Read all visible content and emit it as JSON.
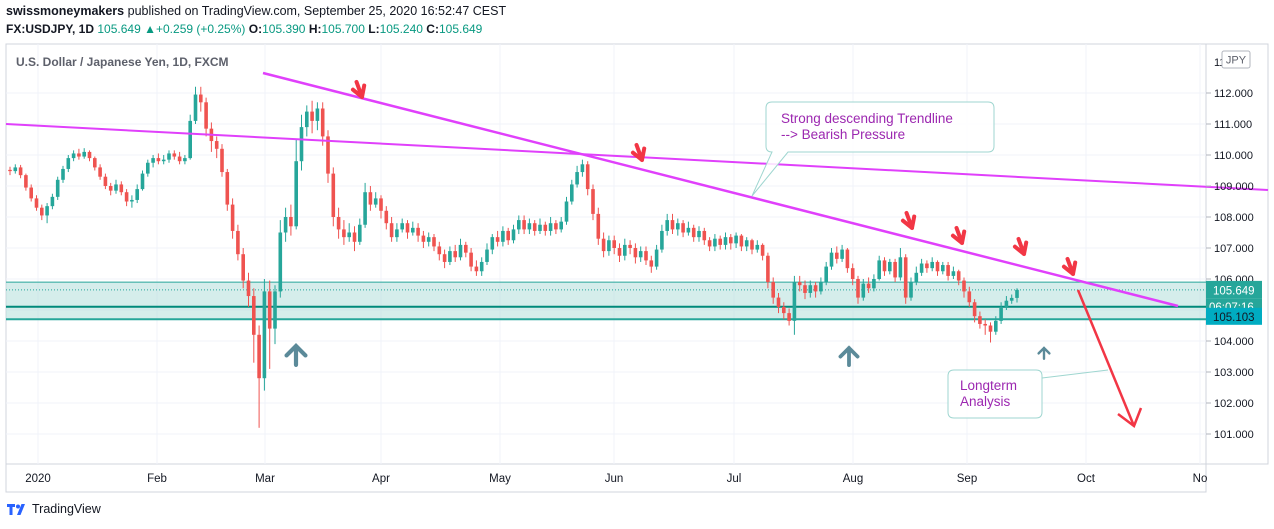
{
  "header": {
    "publisher": "swissmoneymakers",
    "published_text": " published on TradingView.com, September 25, 2020 16:52:47 CEST",
    "symbol_line": {
      "symbol": "FX:USDJPY, 1D",
      "last": "105.649",
      "change": "+0.259 (+0.25%)",
      "o_label": "O:",
      "o": "105.390",
      "h_label": "H:",
      "h": "105.700",
      "l_label": "L:",
      "l": "105.240",
      "c_label": "C:",
      "c": "105.649"
    }
  },
  "footer": {
    "brand": "TradingView"
  },
  "chart_data": {
    "type": "candlestick",
    "title": "U.S. Dollar / Japanese Yen, 1D, FXCM",
    "currency_badge": "JPY",
    "y_ticks": [
      "101.000",
      "102.000",
      "103.000",
      "104.000",
      "105.000",
      "106.000",
      "107.000",
      "108.000",
      "109.000",
      "110.000",
      "111.000",
      "112.000"
    ],
    "y_top_tick_partial": "11",
    "x_labels": [
      "2020",
      "Feb",
      "Mar",
      "Apr",
      "May",
      "Jun",
      "Jul",
      "Aug",
      "Sep",
      "Oct",
      "No"
    ],
    "ylim": [
      100.4,
      113.5
    ],
    "price_labels": {
      "last": "105.649",
      "countdown": "06:07:16",
      "low_zone": "105.103"
    },
    "support_zone": [
      104.7,
      105.9
    ],
    "annotations": [
      {
        "text_lines": [
          "Strong descending Trendline",
          "--> Bearish Pressure"
        ],
        "color": "#9c27b0"
      },
      {
        "text_lines": [
          "Longterm",
          "Analysis"
        ],
        "color": "#9c27b0"
      }
    ],
    "candles": [
      [
        109.52,
        109.48,
        109.62,
        109.35
      ],
      [
        109.48,
        109.6,
        109.7,
        109.4
      ],
      [
        109.6,
        109.35,
        109.68,
        109.25
      ],
      [
        109.35,
        108.95,
        109.4,
        108.85
      ],
      [
        108.95,
        108.6,
        109.05,
        108.5
      ],
      [
        108.6,
        108.3,
        108.7,
        108.2
      ],
      [
        108.3,
        108.05,
        108.4,
        107.9
      ],
      [
        108.05,
        108.35,
        108.45,
        107.8
      ],
      [
        108.35,
        108.65,
        108.75,
        108.25
      ],
      [
        108.65,
        109.2,
        109.3,
        108.55
      ],
      [
        109.2,
        109.55,
        109.65,
        109.1
      ],
      [
        109.55,
        109.9,
        110.0,
        109.45
      ],
      [
        109.9,
        110.05,
        110.15,
        109.8
      ],
      [
        110.05,
        109.95,
        110.2,
        109.85
      ],
      [
        109.95,
        110.1,
        110.22,
        109.88
      ],
      [
        110.1,
        109.9,
        110.15,
        109.8
      ],
      [
        109.9,
        109.6,
        109.95,
        109.5
      ],
      [
        109.6,
        109.3,
        109.7,
        109.2
      ],
      [
        109.3,
        109.0,
        109.4,
        108.9
      ],
      [
        109.0,
        108.85,
        109.1,
        108.7
      ],
      [
        108.85,
        109.05,
        109.2,
        108.75
      ],
      [
        109.05,
        108.8,
        109.15,
        108.7
      ],
      [
        108.8,
        108.5,
        108.9,
        108.35
      ],
      [
        108.5,
        108.55,
        108.7,
        108.3
      ],
      [
        108.55,
        108.9,
        109.05,
        108.45
      ],
      [
        108.9,
        109.4,
        109.5,
        108.85
      ],
      [
        109.4,
        109.75,
        109.85,
        109.3
      ],
      [
        109.75,
        109.9,
        110.0,
        109.6
      ],
      [
        109.9,
        109.8,
        110.05,
        109.7
      ],
      [
        109.8,
        109.85,
        110.0,
        109.7
      ],
      [
        109.85,
        110.05,
        110.15,
        109.75
      ],
      [
        110.05,
        109.95,
        110.15,
        109.85
      ],
      [
        109.95,
        109.8,
        110.1,
        109.7
      ],
      [
        109.8,
        109.9,
        110.0,
        109.7
      ],
      [
        109.9,
        111.1,
        111.3,
        109.85
      ],
      [
        111.1,
        111.95,
        112.2,
        111.0
      ],
      [
        111.95,
        111.7,
        112.2,
        111.4
      ],
      [
        111.7,
        110.85,
        111.85,
        110.6
      ],
      [
        110.85,
        110.45,
        111.05,
        110.1
      ],
      [
        110.45,
        110.2,
        110.6,
        109.9
      ],
      [
        110.2,
        109.45,
        110.35,
        109.3
      ],
      [
        109.45,
        108.4,
        109.55,
        108.2
      ],
      [
        108.4,
        107.55,
        108.6,
        107.3
      ],
      [
        107.55,
        106.8,
        107.75,
        106.6
      ],
      [
        106.8,
        105.95,
        107.0,
        105.7
      ],
      [
        105.95,
        105.45,
        106.2,
        105.1
      ],
      [
        105.45,
        104.2,
        105.7,
        103.3
      ],
      [
        104.2,
        102.8,
        104.5,
        101.2
      ],
      [
        102.8,
        105.6,
        106.0,
        102.4
      ],
      [
        105.6,
        104.4,
        105.95,
        103.1
      ],
      [
        104.4,
        105.6,
        105.8,
        103.9
      ],
      [
        105.6,
        107.5,
        107.9,
        105.4
      ],
      [
        107.5,
        108.0,
        108.3,
        107.2
      ],
      [
        108.0,
        107.7,
        108.4,
        107.4
      ],
      [
        107.7,
        109.8,
        110.5,
        107.6
      ],
      [
        109.8,
        110.9,
        111.3,
        109.5
      ],
      [
        110.9,
        111.4,
        111.6,
        110.6
      ],
      [
        111.4,
        111.1,
        111.75,
        110.7
      ],
      [
        111.1,
        111.5,
        111.7,
        110.8
      ],
      [
        111.5,
        110.6,
        111.7,
        110.3
      ],
      [
        110.6,
        109.4,
        110.8,
        109.1
      ],
      [
        109.4,
        108.0,
        109.6,
        107.7
      ],
      [
        108.0,
        107.6,
        108.3,
        107.3
      ],
      [
        107.6,
        107.35,
        107.9,
        107.1
      ],
      [
        107.35,
        107.5,
        107.8,
        107.2
      ],
      [
        107.5,
        107.2,
        107.7,
        106.9
      ],
      [
        107.2,
        107.75,
        107.95,
        107.1
      ],
      [
        107.75,
        108.8,
        109.1,
        107.65
      ],
      [
        108.8,
        108.4,
        109.0,
        108.2
      ],
      [
        108.4,
        108.6,
        108.8,
        108.3
      ],
      [
        108.6,
        108.2,
        108.7,
        107.95
      ],
      [
        108.2,
        107.8,
        108.35,
        107.6
      ],
      [
        107.8,
        107.35,
        108.0,
        107.2
      ],
      [
        107.35,
        107.6,
        107.8,
        107.2
      ],
      [
        107.6,
        107.8,
        107.95,
        107.5
      ],
      [
        107.8,
        107.5,
        107.9,
        107.3
      ],
      [
        107.5,
        107.65,
        107.85,
        107.4
      ],
      [
        107.65,
        107.4,
        107.8,
        107.2
      ],
      [
        107.4,
        107.2,
        107.55,
        107.0
      ],
      [
        107.2,
        107.35,
        107.5,
        107.05
      ],
      [
        107.35,
        107.05,
        107.45,
        106.9
      ],
      [
        107.05,
        106.8,
        107.2,
        106.6
      ],
      [
        106.8,
        106.55,
        106.95,
        106.35
      ],
      [
        106.55,
        106.9,
        107.05,
        106.45
      ],
      [
        106.9,
        106.7,
        107.1,
        106.55
      ],
      [
        106.7,
        107.1,
        107.3,
        106.6
      ],
      [
        107.1,
        106.85,
        107.2,
        106.7
      ],
      [
        106.85,
        106.4,
        107.0,
        106.25
      ],
      [
        106.4,
        106.25,
        106.6,
        106.1
      ],
      [
        106.25,
        106.55,
        106.7,
        106.1
      ],
      [
        106.55,
        106.95,
        107.15,
        106.45
      ],
      [
        106.95,
        107.35,
        107.45,
        106.8
      ],
      [
        107.35,
        107.2,
        107.55,
        107.05
      ],
      [
        107.2,
        107.55,
        107.7,
        107.05
      ],
      [
        107.55,
        107.25,
        107.65,
        107.1
      ],
      [
        107.25,
        107.6,
        107.75,
        107.15
      ],
      [
        107.6,
        107.9,
        108.05,
        107.45
      ],
      [
        107.9,
        107.6,
        108.05,
        107.45
      ],
      [
        107.6,
        107.8,
        107.95,
        107.45
      ],
      [
        107.8,
        107.55,
        107.9,
        107.4
      ],
      [
        107.55,
        107.75,
        107.95,
        107.45
      ],
      [
        107.75,
        107.55,
        107.85,
        107.4
      ],
      [
        107.55,
        107.8,
        108.0,
        107.4
      ],
      [
        107.8,
        107.6,
        107.9,
        107.45
      ],
      [
        107.6,
        107.85,
        108.0,
        107.5
      ],
      [
        107.85,
        108.5,
        108.65,
        107.75
      ],
      [
        108.5,
        109.05,
        109.2,
        108.4
      ],
      [
        109.05,
        109.45,
        109.65,
        108.95
      ],
      [
        109.45,
        109.7,
        109.85,
        109.3
      ],
      [
        109.7,
        108.9,
        109.8,
        108.7
      ],
      [
        108.9,
        108.1,
        109.05,
        107.9
      ],
      [
        108.1,
        107.3,
        108.3,
        107.1
      ],
      [
        107.3,
        106.9,
        107.5,
        106.7
      ],
      [
        106.9,
        107.25,
        107.4,
        106.75
      ],
      [
        107.25,
        107.0,
        107.4,
        106.8
      ],
      [
        107.0,
        106.75,
        107.15,
        106.55
      ],
      [
        106.75,
        107.1,
        107.3,
        106.6
      ],
      [
        107.1,
        107.0,
        107.25,
        106.8
      ],
      [
        107.0,
        106.7,
        107.15,
        106.5
      ],
      [
        106.7,
        106.9,
        107.05,
        106.55
      ],
      [
        106.9,
        106.6,
        107.05,
        106.45
      ],
      [
        106.6,
        106.4,
        106.75,
        106.2
      ],
      [
        106.4,
        106.95,
        107.1,
        106.3
      ],
      [
        106.95,
        107.55,
        107.75,
        106.85
      ],
      [
        107.55,
        107.9,
        108.1,
        107.4
      ],
      [
        107.9,
        107.6,
        108.1,
        107.45
      ],
      [
        107.6,
        107.8,
        107.95,
        107.4
      ],
      [
        107.8,
        107.5,
        107.9,
        107.35
      ],
      [
        107.5,
        107.65,
        107.85,
        107.4
      ],
      [
        107.65,
        107.35,
        107.75,
        107.2
      ],
      [
        107.35,
        107.55,
        107.7,
        107.2
      ],
      [
        107.55,
        107.25,
        107.65,
        107.1
      ],
      [
        107.25,
        107.05,
        107.35,
        106.9
      ],
      [
        107.05,
        107.3,
        107.45,
        106.9
      ],
      [
        107.3,
        107.1,
        107.4,
        106.95
      ],
      [
        107.1,
        107.35,
        107.5,
        106.95
      ],
      [
        107.35,
        107.15,
        107.45,
        106.95
      ],
      [
        107.15,
        107.4,
        107.5,
        107.0
      ],
      [
        107.4,
        107.05,
        107.45,
        106.9
      ],
      [
        107.05,
        107.25,
        107.35,
        106.9
      ],
      [
        107.25,
        106.95,
        107.3,
        106.8
      ],
      [
        106.95,
        107.1,
        107.25,
        106.85
      ],
      [
        107.1,
        106.75,
        107.15,
        106.6
      ],
      [
        106.75,
        105.9,
        106.85,
        105.7
      ],
      [
        105.9,
        105.4,
        106.05,
        105.2
      ],
      [
        105.4,
        105.1,
        105.55,
        104.9
      ],
      [
        105.1,
        104.9,
        105.25,
        104.7
      ],
      [
        104.9,
        104.65,
        105.05,
        104.5
      ],
      [
        104.65,
        105.9,
        106.1,
        104.2
      ],
      [
        105.9,
        105.8,
        106.1,
        105.6
      ],
      [
        105.8,
        105.55,
        105.95,
        105.35
      ],
      [
        105.55,
        105.8,
        105.95,
        105.4
      ],
      [
        105.8,
        105.6,
        105.9,
        105.4
      ],
      [
        105.6,
        105.9,
        106.05,
        105.5
      ],
      [
        105.9,
        106.4,
        106.55,
        105.8
      ],
      [
        106.4,
        106.85,
        107.0,
        106.3
      ],
      [
        106.85,
        106.65,
        107.05,
        106.5
      ],
      [
        106.65,
        106.95,
        107.1,
        106.55
      ],
      [
        106.95,
        106.35,
        107.0,
        106.2
      ],
      [
        106.35,
        106.0,
        106.5,
        105.8
      ],
      [
        106.0,
        105.4,
        106.1,
        105.2
      ],
      [
        105.4,
        105.85,
        106.0,
        105.3
      ],
      [
        105.85,
        105.7,
        106.05,
        105.55
      ],
      [
        105.7,
        106.0,
        106.15,
        105.6
      ],
      [
        106.0,
        106.6,
        106.75,
        105.95
      ],
      [
        106.6,
        106.25,
        106.7,
        106.1
      ],
      [
        106.25,
        106.55,
        106.65,
        106.15
      ],
      [
        106.55,
        106.05,
        106.65,
        105.9
      ],
      [
        106.05,
        106.7,
        107.0,
        105.95
      ],
      [
        106.7,
        105.4,
        106.8,
        105.2
      ],
      [
        105.4,
        105.9,
        106.05,
        105.3
      ],
      [
        105.9,
        106.2,
        106.4,
        105.8
      ],
      [
        106.2,
        106.5,
        106.65,
        106.1
      ],
      [
        106.5,
        106.35,
        106.6,
        106.2
      ],
      [
        106.35,
        106.55,
        106.7,
        106.25
      ],
      [
        106.55,
        106.25,
        106.6,
        106.1
      ],
      [
        106.25,
        106.45,
        106.55,
        106.15
      ],
      [
        106.45,
        106.1,
        106.55,
        105.95
      ],
      [
        106.1,
        106.25,
        106.4,
        106.0
      ],
      [
        106.25,
        105.95,
        106.3,
        105.8
      ],
      [
        105.95,
        105.6,
        106.05,
        105.4
      ],
      [
        105.6,
        105.25,
        105.75,
        105.1
      ],
      [
        105.25,
        104.8,
        105.35,
        104.6
      ],
      [
        104.8,
        104.55,
        104.95,
        104.4
      ],
      [
        104.55,
        104.5,
        104.7,
        104.2
      ],
      [
        104.5,
        104.3,
        104.6,
        103.95
      ],
      [
        104.3,
        104.65,
        104.8,
        104.2
      ],
      [
        104.65,
        105.1,
        105.25,
        104.55
      ],
      [
        105.1,
        105.3,
        105.45,
        105.0
      ],
      [
        105.3,
        105.39,
        105.5,
        105.2
      ],
      [
        105.39,
        105.649,
        105.7,
        105.24
      ]
    ],
    "trendlines": [
      {
        "name": "descending",
        "color": "#e040fb"
      },
      {
        "name": "longterm",
        "color": "#e040fb"
      }
    ]
  }
}
